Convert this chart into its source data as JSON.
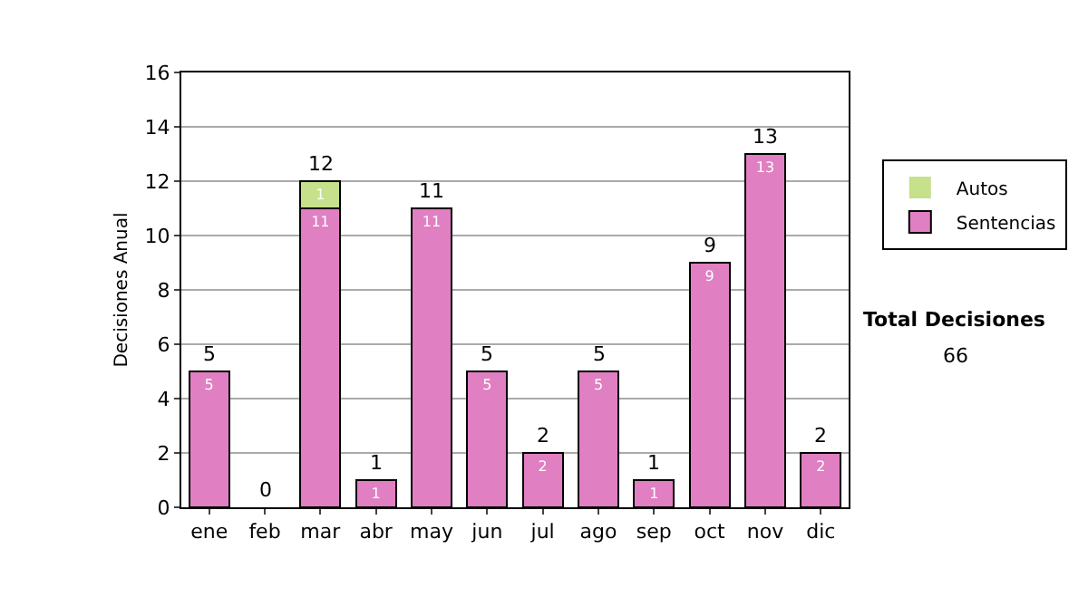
{
  "chart_data": {
    "type": "bar",
    "ylabel": "Decisiones Anual",
    "categories": [
      "ene",
      "feb",
      "mar",
      "abr",
      "may",
      "jun",
      "jul",
      "ago",
      "sep",
      "oct",
      "nov",
      "dic"
    ],
    "stacked": true,
    "ylim": [
      0,
      16
    ],
    "yticks": [
      0,
      2,
      4,
      6,
      8,
      10,
      12,
      14,
      16
    ],
    "grid": "y",
    "legend": "right",
    "series": [
      {
        "name": "Sentencias",
        "color": "#e07fc2",
        "values": [
          5,
          0,
          11,
          1,
          11,
          5,
          2,
          5,
          1,
          9,
          13,
          2
        ],
        "value_labels": [
          "5",
          null,
          "11",
          "1",
          "11",
          "5",
          "2",
          "5",
          "1",
          "9",
          "13",
          "2"
        ]
      },
      {
        "name": "Autos",
        "color": "#c6e08c",
        "values": [
          0,
          0,
          1,
          0,
          0,
          0,
          0,
          0,
          0,
          0,
          0,
          0
        ],
        "value_labels": [
          null,
          null,
          "1",
          null,
          null,
          null,
          null,
          null,
          null,
          null,
          null,
          null
        ]
      }
    ],
    "totals": [
      "5",
      "0",
      "12",
      "1",
      "11",
      "5",
      "2",
      "5",
      "1",
      "9",
      "13",
      "2"
    ],
    "annotations": [
      "Total Decisiones",
      "66"
    ]
  }
}
